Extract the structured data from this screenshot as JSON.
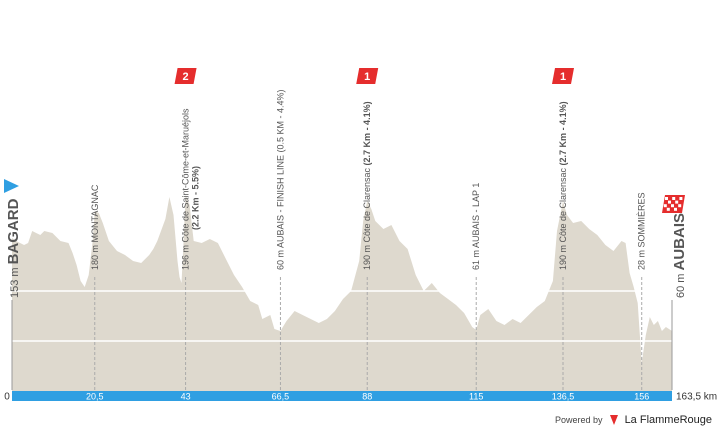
{
  "chart_data": {
    "type": "area",
    "title": "",
    "xlabel": "",
    "ylabel": "",
    "x_unit": "km",
    "xlim": [
      0,
      163.5
    ],
    "ylim": [
      0,
      320
    ],
    "start": {
      "altitude_label": "153 m",
      "name": "BAGARD",
      "flag": "start-flag"
    },
    "finish": {
      "altitude_label": "60 m",
      "name": "AUBAIS",
      "flag": "finish-flag"
    },
    "x_ticks": [
      {
        "km": 0,
        "label": "0"
      },
      {
        "km": 20.5,
        "label": "20,5"
      },
      {
        "km": 43,
        "label": "43"
      },
      {
        "km": 66.5,
        "label": "66,5"
      },
      {
        "km": 88,
        "label": "88"
      },
      {
        "km": 115,
        "label": "115"
      },
      {
        "km": 136.5,
        "label": "136,5"
      },
      {
        "km": 156,
        "label": "156"
      },
      {
        "km": 163.5,
        "label": "163,5 km"
      }
    ],
    "points": [
      {
        "km": 20.5,
        "text": "180 m MONTAGNAC",
        "bold": ""
      },
      {
        "km": 43,
        "text": "196 m Côte de Saint-Côme-et-Maruéjols",
        "bold": "(2.2 Km - 5.5%)",
        "category": "2"
      },
      {
        "km": 66.5,
        "text": "60 m AUBAIS - FINISH LINE (0.5 KM - 4.4%)",
        "bold": ""
      },
      {
        "km": 88,
        "text": "190 m Côte de Clarensac ",
        "bold": "(2.7 Km - 4.1%)",
        "category": "1"
      },
      {
        "km": 115,
        "text": "61 m AUBAIS - LAP 1",
        "bold": ""
      },
      {
        "km": 136.5,
        "text": "190 m Côte de Clarensac ",
        "bold": "(2.7 Km - 4.1%)",
        "category": "1"
      },
      {
        "km": 156,
        "text": "28 m SOMMIÈRES",
        "bold": ""
      }
    ],
    "profile": [
      [
        0,
        153
      ],
      [
        1,
        150
      ],
      [
        2,
        148
      ],
      [
        3,
        146
      ],
      [
        4,
        148
      ],
      [
        5,
        160
      ],
      [
        6,
        158
      ],
      [
        7,
        156
      ],
      [
        8,
        160
      ],
      [
        10,
        158
      ],
      [
        12,
        150
      ],
      [
        14,
        148
      ],
      [
        15,
        138
      ],
      [
        16,
        126
      ],
      [
        17,
        110
      ],
      [
        18,
        104
      ],
      [
        19,
        116
      ],
      [
        20,
        150
      ],
      [
        20.5,
        180
      ],
      [
        21.5,
        178
      ],
      [
        22.5,
        168
      ],
      [
        24,
        150
      ],
      [
        26,
        140
      ],
      [
        28,
        136
      ],
      [
        30,
        130
      ],
      [
        32,
        128
      ],
      [
        34,
        136
      ],
      [
        35,
        142
      ],
      [
        36,
        150
      ],
      [
        38,
        172
      ],
      [
        39,
        194
      ],
      [
        40,
        176
      ],
      [
        41,
        130
      ],
      [
        41.5,
        114
      ],
      [
        42,
        108
      ],
      [
        42.5,
        150
      ],
      [
        43,
        196
      ],
      [
        44,
        186
      ],
      [
        45,
        150
      ],
      [
        47,
        148
      ],
      [
        49,
        152
      ],
      [
        51,
        148
      ],
      [
        53,
        132
      ],
      [
        55,
        116
      ],
      [
        57,
        104
      ],
      [
        59,
        90
      ],
      [
        61,
        86
      ],
      [
        62,
        72
      ],
      [
        64,
        76
      ],
      [
        65,
        62
      ],
      [
        66.5,
        60
      ],
      [
        68,
        70
      ],
      [
        70,
        80
      ],
      [
        72,
        76
      ],
      [
        74,
        72
      ],
      [
        76,
        68
      ],
      [
        78,
        72
      ],
      [
        80,
        80
      ],
      [
        82,
        92
      ],
      [
        84,
        100
      ],
      [
        86,
        130
      ],
      [
        87,
        170
      ],
      [
        88,
        190
      ],
      [
        89,
        182
      ],
      [
        90,
        170
      ],
      [
        92,
        162
      ],
      [
        94,
        166
      ],
      [
        96,
        150
      ],
      [
        98,
        142
      ],
      [
        100,
        116
      ],
      [
        102,
        100
      ],
      [
        104,
        108
      ],
      [
        106,
        98
      ],
      [
        108,
        92
      ],
      [
        110,
        86
      ],
      [
        112,
        78
      ],
      [
        114,
        64
      ],
      [
        115,
        61
      ],
      [
        116,
        76
      ],
      [
        118,
        82
      ],
      [
        120,
        70
      ],
      [
        122,
        66
      ],
      [
        124,
        72
      ],
      [
        126,
        68
      ],
      [
        128,
        76
      ],
      [
        130,
        84
      ],
      [
        132,
        90
      ],
      [
        134,
        110
      ],
      [
        135,
        160
      ],
      [
        136.5,
        190
      ],
      [
        137.5,
        176
      ],
      [
        139,
        168
      ],
      [
        141,
        170
      ],
      [
        143,
        162
      ],
      [
        145,
        156
      ],
      [
        147,
        146
      ],
      [
        149,
        140
      ],
      [
        151,
        150
      ],
      [
        152,
        148
      ],
      [
        153,
        118
      ],
      [
        154,
        104
      ],
      [
        155,
        88
      ],
      [
        156,
        28
      ],
      [
        157,
        56
      ],
      [
        158,
        74
      ],
      [
        159,
        66
      ],
      [
        160,
        70
      ],
      [
        161,
        60
      ],
      [
        162,
        64
      ],
      [
        163.5,
        60
      ]
    ],
    "colors": {
      "fill": "#ded9ce",
      "grid": "#ffffff",
      "bar": "#2f9fe2",
      "marker": "#aaaaaa",
      "start": "#2f9fe2",
      "category": "#e52d2d"
    }
  },
  "footer": {
    "powered_by": "Powered by",
    "brand": "La FlammeRouge",
    "logo": "flame-icon"
  }
}
